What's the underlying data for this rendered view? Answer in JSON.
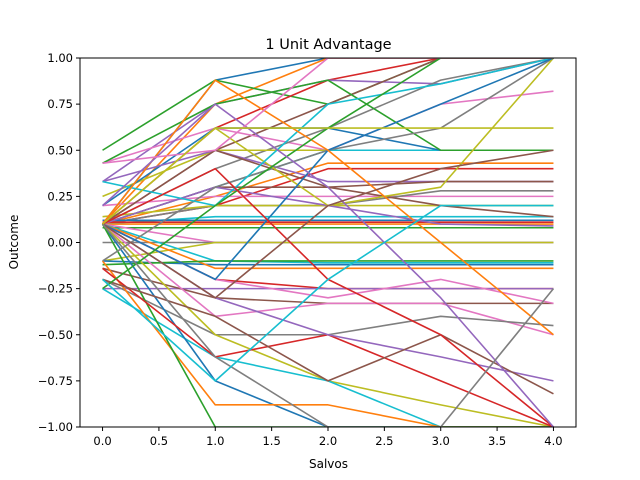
{
  "chart_data": {
    "type": "line",
    "title": "1 Unit Advantage",
    "xlabel": "Salvos",
    "ylabel": "Outcome",
    "xlim": [
      -0.2,
      4.2
    ],
    "ylim": [
      -1.0,
      1.0
    ],
    "x": [
      0,
      1,
      2,
      3,
      4
    ],
    "xticks": [
      0.0,
      0.5,
      1.0,
      1.5,
      2.0,
      2.5,
      3.0,
      3.5,
      4.0
    ],
    "xtick_labels": [
      "0.0",
      "0.5",
      "1.0",
      "1.5",
      "2.0",
      "2.5",
      "3.0",
      "3.5",
      "4.0"
    ],
    "yticks": [
      -1.0,
      -0.75,
      -0.5,
      -0.25,
      0.0,
      0.25,
      0.5,
      0.75,
      1.0
    ],
    "ytick_labels": [
      "−1.00",
      "−0.75",
      "−0.50",
      "−0.25",
      "0.00",
      "0.25",
      "0.50",
      "0.75",
      "1.00"
    ],
    "grid": false,
    "legend": "none",
    "palette": [
      "#1f77b4",
      "#ff7f0e",
      "#2ca02c",
      "#d62728",
      "#9467bd",
      "#8c564b",
      "#e377c2",
      "#7f7f7f",
      "#bcbd22",
      "#17becf"
    ],
    "series": [
      {
        "values": [
          0.1,
          0.88,
          1.0,
          1.0,
          1.0
        ]
      },
      {
        "values": [
          0.1,
          0.75,
          1.0,
          1.0,
          1.0
        ]
      },
      {
        "values": [
          0.5,
          0.88,
          0.75,
          1.0,
          1.0
        ]
      },
      {
        "values": [
          0.1,
          0.62,
          0.88,
          1.0,
          1.0
        ]
      },
      {
        "values": [
          0.33,
          0.75,
          0.88,
          0.86,
          1.0
        ]
      },
      {
        "values": [
          0.1,
          0.5,
          0.75,
          1.0,
          1.0
        ]
      },
      {
        "values": [
          0.43,
          0.62,
          0.5,
          0.75,
          0.82
        ]
      },
      {
        "values": [
          0.1,
          0.4,
          0.62,
          0.88,
          1.0
        ]
      },
      {
        "values": [
          0.25,
          0.5,
          0.5,
          0.5,
          0.5
        ]
      },
      {
        "values": [
          0.1,
          0.3,
          0.5,
          0.5,
          0.5
        ]
      },
      {
        "values": [
          0.2,
          0.62,
          0.62,
          0.5,
          0.5
        ]
      },
      {
        "values": [
          0.1,
          0.25,
          0.43,
          0.43,
          0.43
        ]
      },
      {
        "values": [
          0.43,
          0.75,
          0.88,
          0.5,
          0.5
        ]
      },
      {
        "values": [
          0.1,
          0.2,
          0.4,
          0.4,
          0.4
        ]
      },
      {
        "values": [
          0.33,
          0.5,
          0.33,
          0.33,
          0.33
        ]
      },
      {
        "values": [
          0.1,
          0.3,
          0.3,
          0.33,
          0.33
        ]
      },
      {
        "values": [
          0.2,
          0.25,
          0.25,
          0.25,
          0.25
        ]
      },
      {
        "values": [
          0.1,
          0.2,
          0.2,
          0.28,
          0.28
        ]
      },
      {
        "values": [
          0.14,
          0.2,
          0.2,
          0.2,
          0.2
        ]
      },
      {
        "values": [
          0.1,
          0.14,
          0.14,
          0.14,
          0.14
        ]
      },
      {
        "values": [
          0.12,
          0.12,
          0.12,
          0.12,
          0.12
        ]
      },
      {
        "values": [
          0.1,
          0.1,
          0.1,
          0.1,
          0.1
        ]
      },
      {
        "values": [
          0.08,
          0.08,
          0.08,
          0.08,
          0.08
        ]
      },
      {
        "values": [
          0.11,
          0.11,
          0.11,
          0.11,
          0.11
        ]
      },
      {
        "values": [
          0.1,
          0.3,
          0.2,
          0.1,
          0.09
        ]
      },
      {
        "values": [
          0.1,
          0.5,
          0.3,
          0.2,
          0.14
        ]
      },
      {
        "values": [
          0.1,
          0.0,
          0.0,
          0.0,
          0.0
        ]
      },
      {
        "values": [
          0.0,
          0.0,
          0.0,
          0.0,
          0.0
        ]
      },
      {
        "values": [
          -0.1,
          0.0,
          0.0,
          0.0,
          0.0
        ]
      },
      {
        "values": [
          0.1,
          -0.1,
          -0.11,
          -0.11,
          -0.11
        ]
      },
      {
        "values": [
          -0.1,
          -0.12,
          -0.12,
          -0.12,
          -0.12
        ]
      },
      {
        "values": [
          0.1,
          -0.14,
          -0.14,
          -0.14,
          -0.14
        ]
      },
      {
        "values": [
          -0.12,
          -0.1,
          -0.1,
          -0.1,
          -0.1
        ]
      },
      {
        "values": [
          0.1,
          -0.2,
          -0.25,
          -0.25,
          -0.25
        ]
      },
      {
        "values": [
          -0.25,
          -0.25,
          -0.25,
          -0.25,
          -0.25
        ]
      },
      {
        "values": [
          -0.14,
          -0.3,
          -0.33,
          -0.33,
          -0.33
        ]
      },
      {
        "values": [
          0.1,
          -0.4,
          -0.33,
          -0.33,
          -0.5
        ]
      },
      {
        "values": [
          -0.2,
          -0.5,
          -0.5,
          -0.4,
          -0.45
        ]
      },
      {
        "values": [
          0.1,
          -0.5,
          -0.75,
          -0.88,
          -1.0
        ]
      },
      {
        "values": [
          -0.25,
          -0.62,
          -0.75,
          -1.0,
          -1.0
        ]
      },
      {
        "values": [
          0.1,
          -0.75,
          -1.0,
          -1.0,
          -1.0
        ]
      },
      {
        "values": [
          -0.1,
          -0.88,
          -0.88,
          -1.0,
          -1.0
        ]
      },
      {
        "values": [
          0.1,
          -1.0,
          -1.0,
          -1.0,
          -1.0
        ]
      },
      {
        "values": [
          -0.14,
          -0.62,
          -0.5,
          -0.75,
          -1.0
        ]
      },
      {
        "values": [
          0.1,
          -0.3,
          -0.5,
          -0.62,
          -0.75
        ]
      },
      {
        "values": [
          -0.2,
          -0.4,
          -0.75,
          -0.5,
          -0.82
        ]
      },
      {
        "values": [
          0.1,
          -0.2,
          -0.3,
          -0.2,
          -0.33
        ]
      },
      {
        "values": [
          -0.1,
          0.3,
          0.5,
          0.62,
          1.0
        ]
      },
      {
        "values": [
          0.1,
          0.62,
          0.2,
          0.3,
          1.0
        ]
      },
      {
        "values": [
          0.33,
          0.2,
          0.75,
          0.86,
          1.0
        ]
      },
      {
        "values": [
          0.1,
          -0.2,
          0.5,
          0.75,
          1.0
        ]
      },
      {
        "values": [
          0.1,
          0.88,
          0.5,
          0.0,
          -0.5
        ]
      },
      {
        "values": [
          -0.25,
          0.2,
          0.62,
          1.0,
          1.0
        ]
      },
      {
        "values": [
          0.1,
          0.4,
          -0.2,
          -0.5,
          -1.0
        ]
      },
      {
        "values": [
          0.2,
          0.75,
          0.3,
          -0.3,
          -1.0
        ]
      },
      {
        "values": [
          0.1,
          -0.3,
          0.2,
          0.4,
          0.5
        ]
      },
      {
        "values": [
          0.43,
          0.5,
          1.0,
          1.0,
          1.0
        ]
      },
      {
        "values": [
          0.1,
          -0.62,
          -1.0,
          -1.0,
          -0.25
        ]
      },
      {
        "values": [
          0.1,
          0.62,
          0.62,
          0.62,
          0.62
        ]
      },
      {
        "values": [
          -0.2,
          -0.75,
          -0.2,
          0.2,
          0.2
        ]
      }
    ]
  }
}
